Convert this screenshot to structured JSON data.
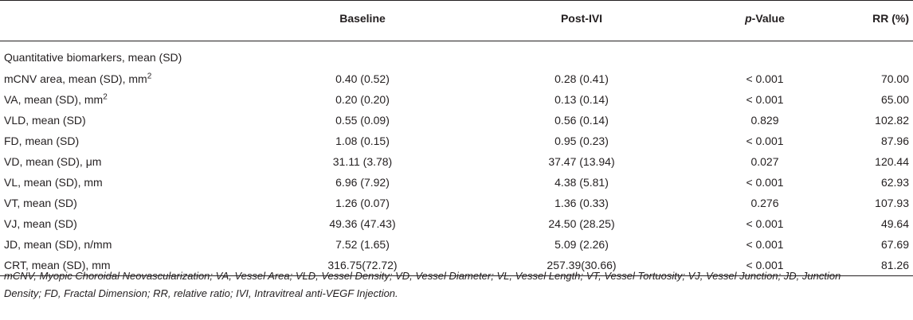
{
  "header": {
    "col0": "",
    "col1": "Baseline",
    "col2": "Post-IVI",
    "col3_italic": "p",
    "col3_rest": "-Value",
    "col4": "RR (%)"
  },
  "section_label": "Quantitative biomarkers, mean (SD)",
  "rows": [
    {
      "label": "mCNV area, mean (SD), mm",
      "sup": "2",
      "baseline": "0.40 (0.52)",
      "post": "0.28 (0.41)",
      "p": "< 0.001",
      "rr": "70.00"
    },
    {
      "label": "VA, mean (SD), mm",
      "sup": "2",
      "baseline": "0.20 (0.20)",
      "post": "0.13 (0.14)",
      "p": "< 0.001",
      "rr": "65.00"
    },
    {
      "label": "VLD, mean (SD)",
      "sup": "",
      "baseline": "0.55 (0.09)",
      "post": "0.56 (0.14)",
      "p": "0.829",
      "rr": "102.82"
    },
    {
      "label": "FD, mean (SD)",
      "sup": "",
      "baseline": "1.08 (0.15)",
      "post": "0.95 (0.23)",
      "p": "< 0.001",
      "rr": "87.96"
    },
    {
      "label": "VD, mean (SD), μm",
      "sup": "",
      "baseline": "31.11 (3.78)",
      "post": "37.47 (13.94)",
      "p": "0.027",
      "rr": "120.44"
    },
    {
      "label": "VL, mean (SD), mm",
      "sup": "",
      "baseline": "6.96 (7.92)",
      "post": "4.38 (5.81)",
      "p": "< 0.001",
      "rr": "62.93"
    },
    {
      "label": "VT, mean (SD)",
      "sup": "",
      "baseline": "1.26 (0.07)",
      "post": "1.36 (0.33)",
      "p": "0.276",
      "rr": "107.93"
    },
    {
      "label": "VJ, mean (SD)",
      "sup": "",
      "baseline": "49.36 (47.43)",
      "post": "24.50 (28.25)",
      "p": "< 0.001",
      "rr": "49.64"
    },
    {
      "label": "JD, mean (SD), n/mm",
      "sup": "",
      "baseline": "7.52 (1.65)",
      "post": "5.09 (2.26)",
      "p": "< 0.001",
      "rr": "67.69"
    },
    {
      "label": "CRT, mean (SD), mm",
      "sup": "",
      "baseline": "316.75(72.72)",
      "post": "257.39(30.66)",
      "p": "< 0.001",
      "rr": "81.26"
    }
  ],
  "footnote": {
    "line1": "mCNV, Myopic Choroidal Neovascularization; VA, Vessel Area; VLD, Vessel Density; VD, Vessel Diameter; VL, Vessel Length; VT, Vessel Tortuosity; VJ, Vessel Junction; JD, Junction",
    "line2": "Density; FD, Fractal Dimension; RR, relative ratio; IVI, Intravitreal anti-VEGF Injection."
  }
}
